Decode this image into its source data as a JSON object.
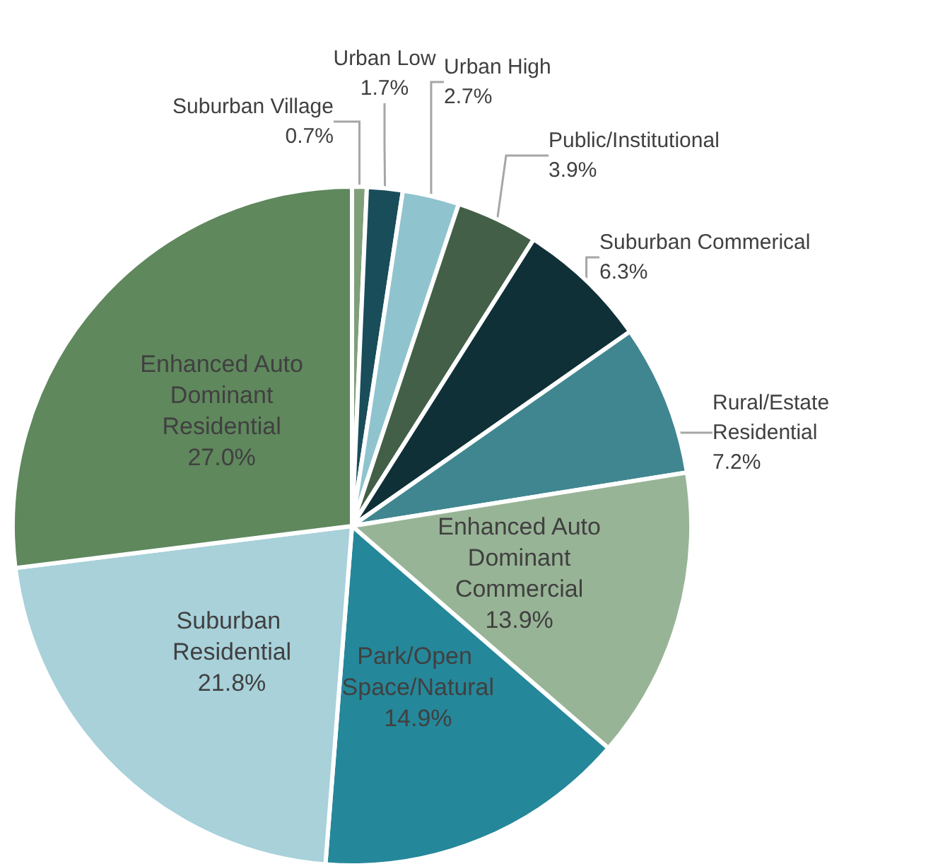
{
  "chart_data": {
    "type": "pie",
    "categories": [
      "Suburban Village",
      "Urban Low",
      "Urban High",
      "Public/Institutional",
      "Suburban Commerical",
      "Rural/Estate Residential",
      "Enhanced Auto Dominant Commercial",
      "Park/Open Space/Natural",
      "Suburban Residential",
      "Enhanced Auto Dominant Residential"
    ],
    "values": [
      0.7,
      1.7,
      2.7,
      3.9,
      6.3,
      7.2,
      13.9,
      14.9,
      21.8,
      27.0
    ],
    "value_labels": [
      "0.7%",
      "1.7%",
      "2.7%",
      "3.9%",
      "6.3%",
      "7.2%",
      "13.9%",
      "14.9%",
      "21.8%",
      "27.0%"
    ],
    "colors": [
      "#7f9f78",
      "#1a4d5a",
      "#8fc4cf",
      "#435f48",
      "#0f3036",
      "#408690",
      "#98b496",
      "#25879a",
      "#a8d1da",
      "#5f885d"
    ],
    "legend": false
  }
}
